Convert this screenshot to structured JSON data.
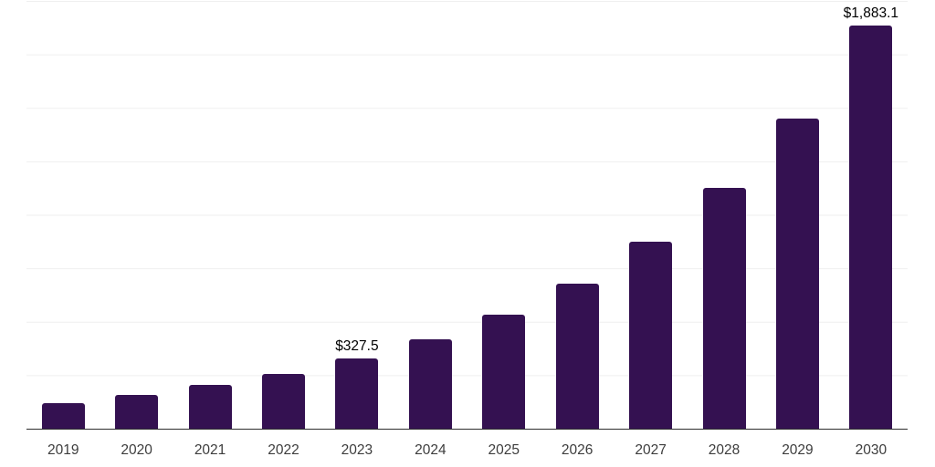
{
  "chart_data": {
    "type": "bar",
    "title": "",
    "xlabel": "",
    "ylabel": "",
    "categories": [
      "2019",
      "2020",
      "2021",
      "2022",
      "2023",
      "2024",
      "2025",
      "2026",
      "2027",
      "2028",
      "2029",
      "2030"
    ],
    "values": [
      118,
      158,
      204,
      258,
      327.5,
      417,
      535,
      680,
      876,
      1124,
      1451,
      1883.1
    ],
    "bar_labels": [
      "",
      "",
      "",
      "",
      "$327.5",
      "",
      "",
      "",
      "",
      "",
      "",
      "$1,883.1"
    ],
    "ylim": [
      0,
      2000
    ],
    "gridline_interval": 250,
    "grid": true,
    "legend_position": "none",
    "colors": {
      "bar": "#341151",
      "grid": "#efefef",
      "axis": "#2e2e2e",
      "value_label": "#000000",
      "tick_label": "#3d3d3d",
      "background": "#ffffff"
    }
  }
}
